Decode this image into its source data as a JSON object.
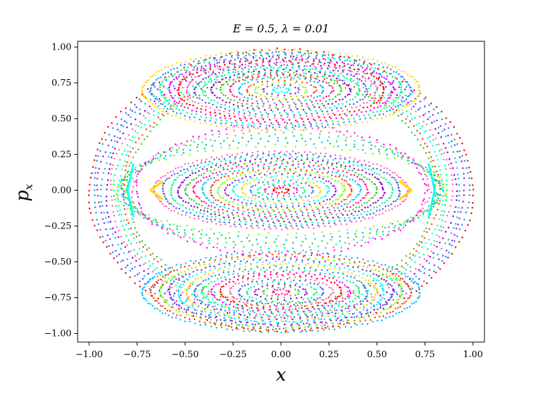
{
  "chart_data": {
    "type": "scatter",
    "title": "E = 0.5, λ = 0.01",
    "xlabel": "x",
    "ylabel": "p",
    "ylabel_sub": "x",
    "xlim": [
      -1.06,
      1.06
    ],
    "ylim": [
      -1.06,
      1.04
    ],
    "xticks": [
      -1.0,
      -0.75,
      -0.5,
      -0.25,
      0.0,
      0.25,
      0.5,
      0.75,
      1.0
    ],
    "xtick_labels": [
      "−1.00",
      "−0.75",
      "−0.50",
      "−0.25",
      "0.00",
      "0.25",
      "0.50",
      "0.75",
      "1.00"
    ],
    "yticks": [
      1.0,
      0.75,
      0.5,
      0.25,
      0.0,
      -0.25,
      -0.5,
      -0.75,
      -1.0
    ],
    "ytick_labels": [
      "1.00",
      "0.75",
      "0.50",
      "0.25",
      "0.00",
      "−0.25",
      "−0.50",
      "−0.75",
      "−1.00"
    ],
    "grid": false,
    "legend": "none",
    "series": [
      {
        "color": "#ffd700",
        "values": [
          {
            "x": 0.0,
            "y": 0.0,
            "rx": 0.0,
            "ry": 0.0
          }
        ]
      },
      {
        "color": "#00ffff",
        "values": [
          {
            "x": 0.0,
            "y": 0.0,
            "rx": 0.0,
            "ry": 0.0
          }
        ]
      }
    ],
    "islands": [
      {
        "cx": 0.0,
        "cy": 0.0,
        "rx_max": 0.66,
        "ry_max": 0.27,
        "rings": 16
      },
      {
        "cx": 0.0,
        "cy": 0.7,
        "rx_max": 0.72,
        "ry_max": 0.28,
        "rings": 16
      },
      {
        "cx": 0.0,
        "cy": -0.71,
        "rx_max": 0.72,
        "ry_max": 0.28,
        "rings": 16
      }
    ],
    "outer_boundary": {
      "rx": 1.0,
      "ry": 1.0,
      "rings": 10
    },
    "palette": [
      "#ff0000",
      "#ff00ff",
      "#00ff80",
      "#1e90ff",
      "#ffd700",
      "#00ffff",
      "#8a2be2",
      "#7fff00",
      "#ff4500",
      "#00bfff",
      "#ff1493",
      "#32cd32",
      "#9400d3",
      "#00fa9a",
      "#4169e1",
      "#ff69b4"
    ]
  }
}
